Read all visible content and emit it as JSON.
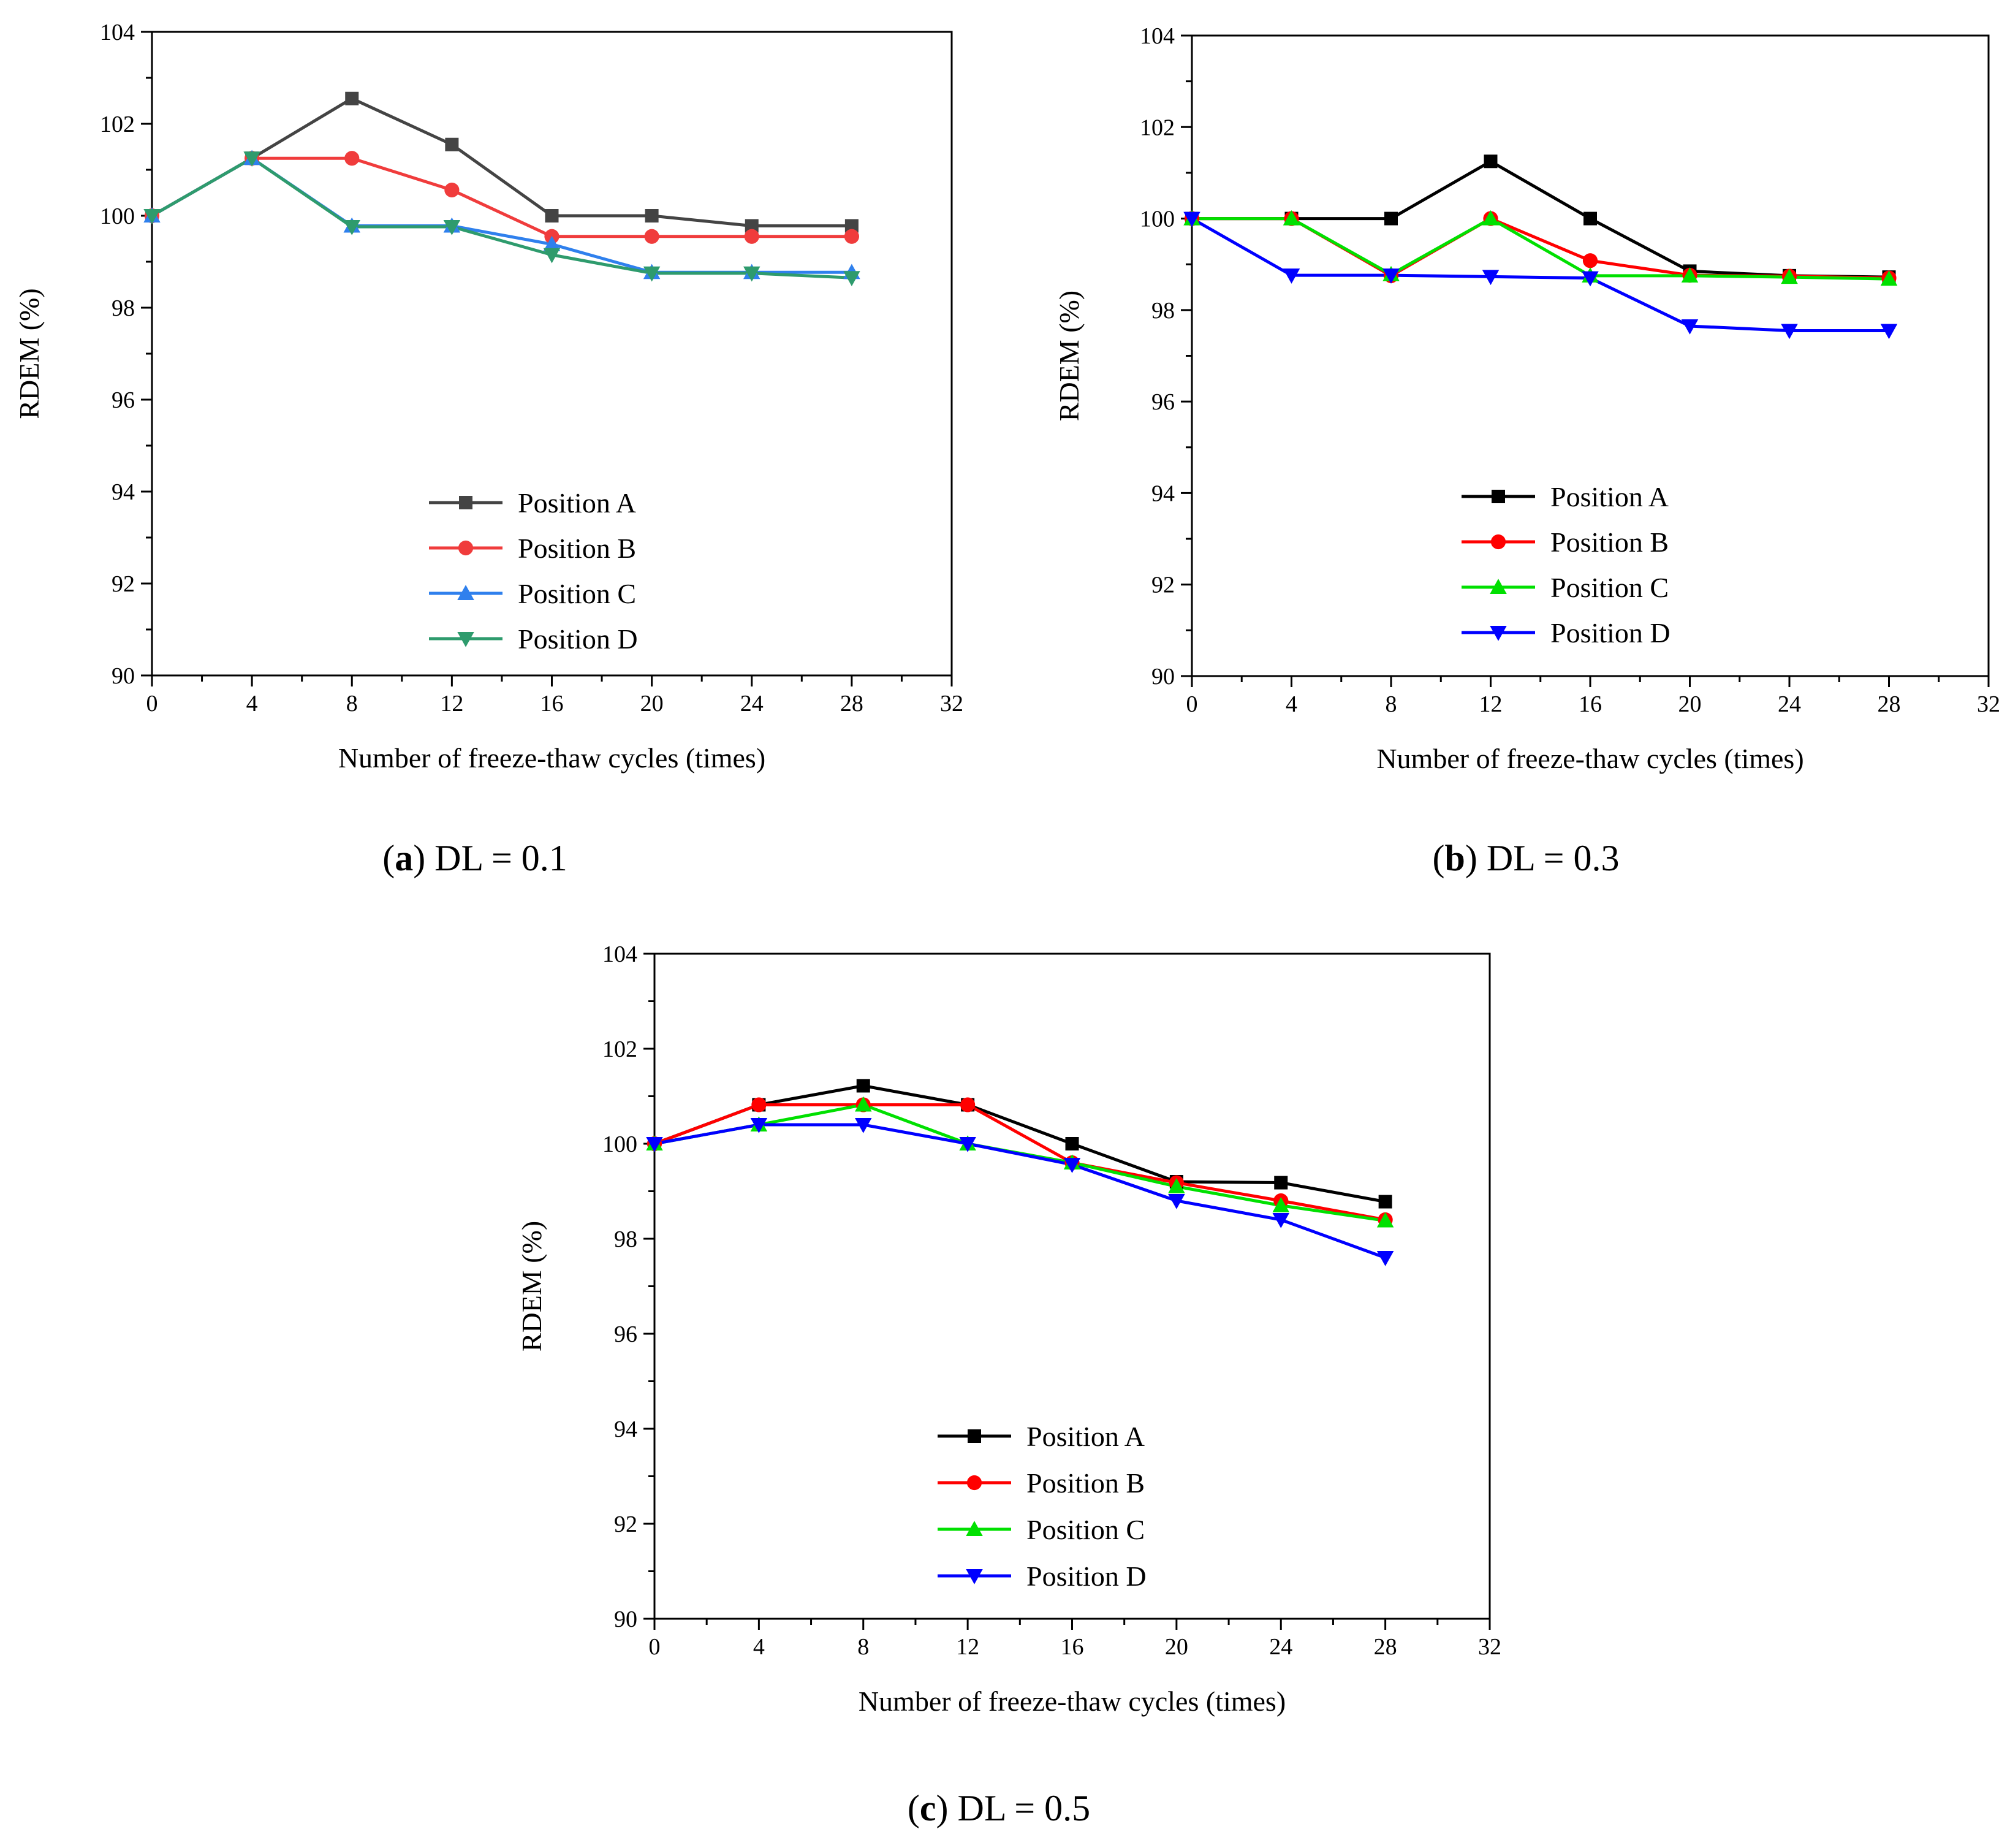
{
  "chart_data": [
    {
      "type": "line",
      "caption_label": "a",
      "caption_text": "DL = 0.1",
      "title": "",
      "xlabel": "Number of freeze-thaw cycles (times)",
      "ylabel": "RDEM (%)",
      "xlim": [
        0,
        32
      ],
      "ylim": [
        90,
        104
      ],
      "xticks": [
        0,
        4,
        8,
        12,
        16,
        20,
        24,
        28,
        32
      ],
      "yticks": [
        90,
        92,
        94,
        96,
        98,
        100,
        102,
        104
      ],
      "x": [
        0,
        4,
        8,
        12,
        16,
        20,
        24,
        28
      ],
      "grid": false,
      "legend_position": "lower-center",
      "series": [
        {
          "name": "Position A",
          "color": "#444444",
          "marker": "square",
          "values": [
            100.0,
            101.25,
            102.55,
            101.55,
            100.0,
            100.0,
            99.78,
            99.78
          ]
        },
        {
          "name": "Position B",
          "color": "#f03c3c",
          "marker": "circle",
          "values": [
            100.0,
            101.25,
            101.25,
            100.56,
            99.55,
            99.55,
            99.55,
            99.55
          ]
        },
        {
          "name": "Position C",
          "color": "#2f80ed",
          "marker": "triangle-up",
          "values": [
            100.0,
            101.25,
            99.78,
            99.78,
            99.38,
            98.77,
            98.77,
            98.77
          ]
        },
        {
          "name": "Position D",
          "color": "#2e9b6d",
          "marker": "triangle-down",
          "values": [
            100.0,
            101.25,
            99.76,
            99.76,
            99.15,
            98.75,
            98.75,
            98.65
          ]
        }
      ]
    },
    {
      "type": "line",
      "caption_label": "b",
      "caption_text": "DL = 0.3",
      "title": "",
      "xlabel": "Number of freeze-thaw cycles (times)",
      "ylabel": "RDEM (%)",
      "xlim": [
        0,
        32
      ],
      "ylim": [
        90,
        104
      ],
      "xticks": [
        0,
        4,
        8,
        12,
        16,
        20,
        24,
        28,
        32
      ],
      "yticks": [
        90,
        92,
        94,
        96,
        98,
        100,
        102,
        104
      ],
      "x": [
        0,
        4,
        8,
        12,
        16,
        20,
        24,
        28
      ],
      "grid": false,
      "legend_position": "lower-center",
      "series": [
        {
          "name": "Position A",
          "color": "#000000",
          "marker": "square",
          "values": [
            100.0,
            100.0,
            100.0,
            101.25,
            100.0,
            98.85,
            98.75,
            98.72
          ]
        },
        {
          "name": "Position B",
          "color": "#ff0000",
          "marker": "circle",
          "values": [
            100.0,
            100.0,
            98.75,
            100.0,
            99.08,
            98.76,
            98.74,
            98.7
          ]
        },
        {
          "name": "Position C",
          "color": "#00e000",
          "marker": "triangle-up",
          "values": [
            100.0,
            100.0,
            98.78,
            100.0,
            98.75,
            98.75,
            98.72,
            98.68
          ]
        },
        {
          "name": "Position D",
          "color": "#0000ff",
          "marker": "triangle-down",
          "values": [
            100.0,
            98.76,
            98.76,
            98.73,
            98.7,
            97.65,
            97.55,
            97.55
          ]
        }
      ]
    },
    {
      "type": "line",
      "caption_label": "c",
      "caption_text": "DL = 0.5",
      "title": "",
      "xlabel": "Number of freeze-thaw cycles (times)",
      "ylabel": "RDEM (%)",
      "xlim": [
        0,
        32
      ],
      "ylim": [
        90,
        104
      ],
      "xticks": [
        0,
        4,
        8,
        12,
        16,
        20,
        24,
        28,
        32
      ],
      "yticks": [
        90,
        92,
        94,
        96,
        98,
        100,
        102,
        104
      ],
      "x": [
        0,
        4,
        8,
        12,
        16,
        20,
        24,
        28
      ],
      "grid": false,
      "legend_position": "lower-center",
      "series": [
        {
          "name": "Position A",
          "color": "#000000",
          "marker": "square",
          "values": [
            100.0,
            100.82,
            101.22,
            100.82,
            100.0,
            99.2,
            99.18,
            98.78
          ]
        },
        {
          "name": "Position B",
          "color": "#ff0000",
          "marker": "circle",
          "values": [
            100.0,
            100.82,
            100.82,
            100.82,
            99.6,
            99.18,
            98.8,
            98.4
          ]
        },
        {
          "name": "Position C",
          "color": "#00e000",
          "marker": "triangle-up",
          "values": [
            100.0,
            100.4,
            100.82,
            100.0,
            99.6,
            99.1,
            98.7,
            98.38
          ]
        },
        {
          "name": "Position D",
          "color": "#0000ff",
          "marker": "triangle-down",
          "values": [
            100.0,
            100.4,
            100.4,
            100.0,
            99.56,
            98.8,
            98.4,
            97.6
          ]
        }
      ]
    }
  ]
}
